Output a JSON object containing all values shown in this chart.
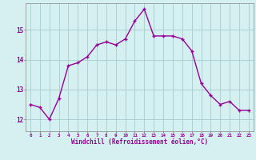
{
  "x": [
    0,
    1,
    2,
    3,
    4,
    5,
    6,
    7,
    8,
    9,
    10,
    11,
    12,
    13,
    14,
    15,
    16,
    17,
    18,
    19,
    20,
    21,
    22,
    23
  ],
  "y": [
    12.5,
    12.4,
    12.0,
    12.7,
    13.8,
    13.9,
    14.1,
    14.5,
    14.6,
    14.5,
    14.7,
    15.3,
    15.7,
    14.8,
    14.8,
    14.8,
    14.7,
    14.3,
    13.2,
    12.8,
    12.5,
    12.6,
    12.3,
    12.3
  ],
  "line_color": "#990099",
  "marker": "+",
  "marker_size": 3.5,
  "bg_color": "#d4f0f0",
  "grid_color": "#aacccc",
  "xlabel": "Windchill (Refroidissement éolien,°C)",
  "xlabel_color": "#990099",
  "tick_color": "#990099",
  "ylabel_ticks": [
    12,
    13,
    14,
    15
  ],
  "ylim": [
    11.6,
    15.9
  ],
  "xlim": [
    -0.5,
    23.5
  ],
  "line_width": 1.0
}
